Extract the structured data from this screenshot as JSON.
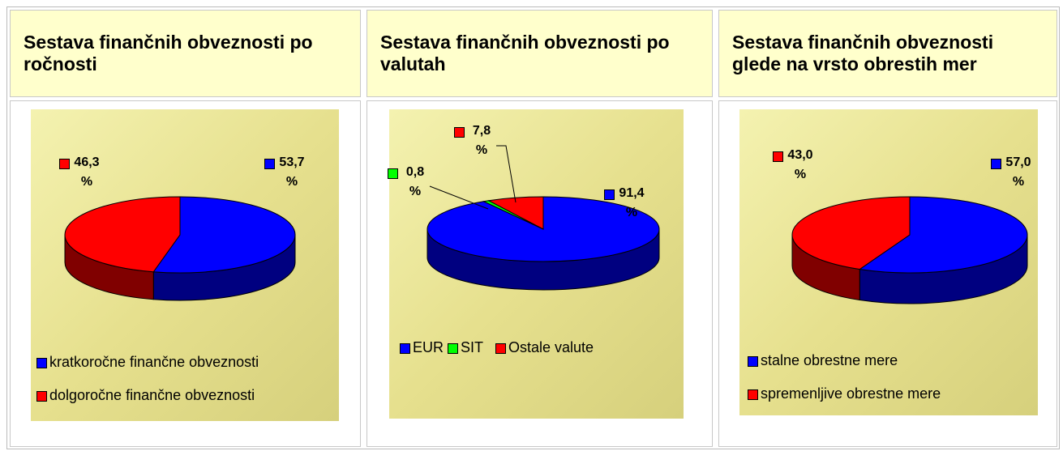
{
  "chart_data": [
    {
      "type": "pie",
      "title": "Sestava finančnih obveznosti po ročnosti",
      "categories": [
        "kratkoročne finančne obveznosti",
        "dolgoročne finančne obveznosti"
      ],
      "values": [
        53.7,
        46.3
      ],
      "value_labels": [
        "53,7 %",
        "46,3 %"
      ],
      "colors": [
        "#0000ff",
        "#ff0000"
      ],
      "legend": "bottom"
    },
    {
      "type": "pie",
      "title": "Sestava finančnih obveznosti po valutah",
      "categories": [
        "EUR",
        "SIT",
        "Ostale valute"
      ],
      "values": [
        91.4,
        0.8,
        7.8
      ],
      "value_labels": [
        "91,4 %",
        "0,8 %",
        "7,8 %"
      ],
      "colors": [
        "#0000ff",
        "#00ff00",
        "#ff0000"
      ],
      "legend": "bottom"
    },
    {
      "type": "pie",
      "title": "Sestava finančnih obveznosti glede na vrsto obrestih mer",
      "categories": [
        "stalne obrestne mere",
        "spremenljive obrestne mere"
      ],
      "values": [
        57.0,
        43.0
      ],
      "value_labels": [
        "57,0 %",
        "43,0 %"
      ],
      "colors": [
        "#0000ff",
        "#ff0000"
      ],
      "legend": "bottom"
    }
  ]
}
